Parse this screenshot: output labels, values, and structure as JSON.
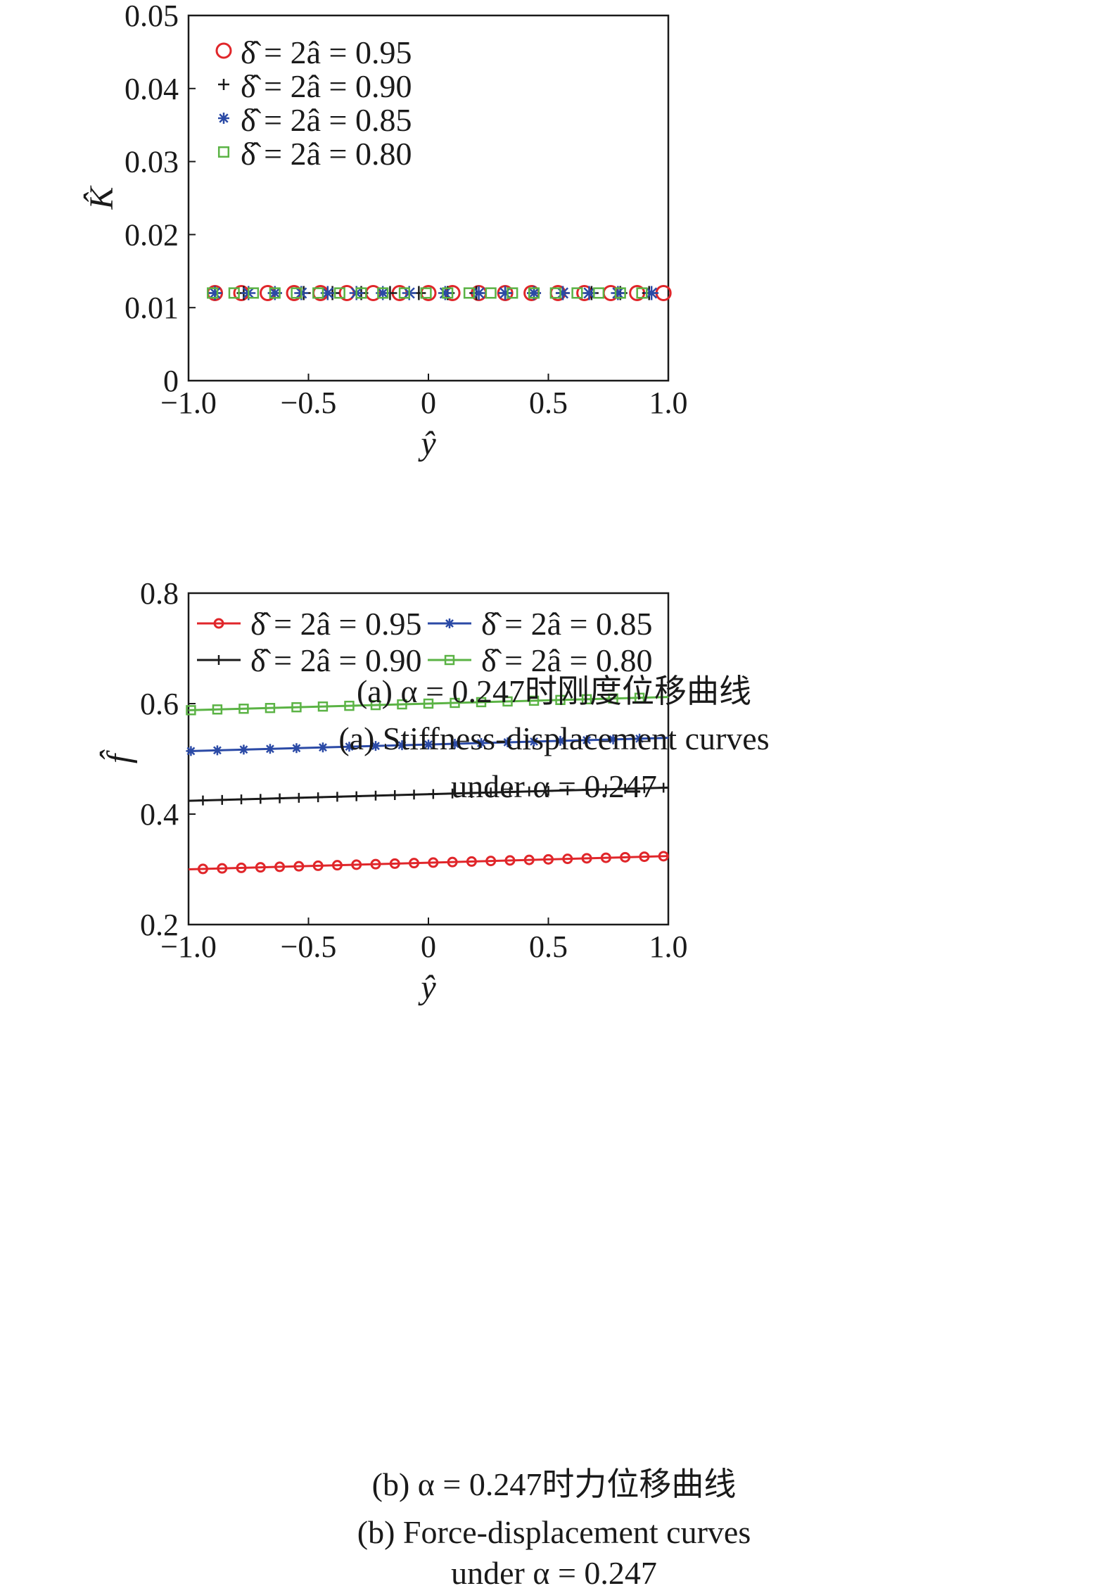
{
  "chart_data": [
    {
      "type": "scatter",
      "xlabel": "ŷ",
      "ylabel": "K̂",
      "xlim": [
        -1.0,
        1.0
      ],
      "ylim": [
        0,
        0.05
      ],
      "xticks": [
        -1.0,
        -0.5,
        0,
        0.5,
        1.0
      ],
      "xtick_labels": [
        "−1.0",
        "−0.5",
        "0",
        "0.5",
        "1.0"
      ],
      "yticks": [
        0,
        0.01,
        0.02,
        0.03,
        0.04,
        0.05
      ],
      "ytick_labels": [
        "0",
        "0.01",
        "0.02",
        "0.03",
        "0.04",
        "0.05"
      ],
      "legend_position": "top-left",
      "caption_cn": "(a) α = 0.247时刚度位移曲线",
      "caption_en": [
        "(a) Stiffness-displacement curves",
        "under  α = 0.247"
      ],
      "series": [
        {
          "name": "δ̂ = 2â = 0.95",
          "marker": "circle",
          "color": "#e0262a",
          "line": false,
          "x": [
            -0.89,
            -0.78,
            -0.67,
            -0.56,
            -0.45,
            -0.34,
            -0.23,
            -0.12,
            0.0,
            0.1,
            0.21,
            0.32,
            0.43,
            0.54,
            0.65,
            0.76,
            0.87,
            0.98
          ],
          "y": [
            0.012,
            0.012,
            0.012,
            0.012,
            0.012,
            0.012,
            0.012,
            0.012,
            0.012,
            0.012,
            0.012,
            0.012,
            0.012,
            0.012,
            0.012,
            0.012,
            0.012,
            0.012
          ]
        },
        {
          "name": "δ̂ = 2â = 0.90",
          "marker": "plus",
          "color": "#1a1a1a",
          "line": false,
          "x": [
            -0.89,
            -0.77,
            -0.64,
            -0.52,
            -0.4,
            -0.28,
            -0.16,
            -0.04,
            0.08,
            0.2,
            0.32,
            0.44,
            0.56,
            0.68,
            0.8,
            0.92
          ],
          "y": [
            0.012,
            0.012,
            0.012,
            0.012,
            0.012,
            0.012,
            0.012,
            0.012,
            0.012,
            0.012,
            0.012,
            0.012,
            0.012,
            0.012,
            0.012,
            0.012
          ]
        },
        {
          "name": "δ̂ = 2â = 0.85",
          "marker": "asterisk",
          "color": "#2b4aa6",
          "line": false,
          "x": [
            -0.89,
            -0.75,
            -0.64,
            -0.53,
            -0.42,
            -0.3,
            -0.19,
            -0.08,
            0.07,
            0.21,
            0.32,
            0.44,
            0.56,
            0.67,
            0.79,
            0.93
          ],
          "y": [
            0.012,
            0.012,
            0.012,
            0.012,
            0.012,
            0.012,
            0.012,
            0.012,
            0.012,
            0.012,
            0.012,
            0.012,
            0.012,
            0.012,
            0.012,
            0.012
          ]
        },
        {
          "name": "δ̂ = 2â = 0.80",
          "marker": "square",
          "color": "#5bb345",
          "line": false,
          "x": [
            -0.9,
            -0.81,
            -0.73,
            -0.64,
            -0.55,
            -0.46,
            -0.37,
            -0.28,
            -0.19,
            -0.1,
            -0.01,
            0.08,
            0.17,
            0.26,
            0.35,
            0.44,
            0.53,
            0.62,
            0.71,
            0.8,
            0.89
          ],
          "y": [
            0.012,
            0.012,
            0.012,
            0.012,
            0.012,
            0.012,
            0.012,
            0.012,
            0.012,
            0.012,
            0.012,
            0.012,
            0.012,
            0.012,
            0.012,
            0.012,
            0.012,
            0.012,
            0.012,
            0.012,
            0.012
          ]
        }
      ]
    },
    {
      "type": "line",
      "xlabel": "ŷ",
      "ylabel": "f̂",
      "xlim": [
        -1.0,
        1.0
      ],
      "ylim": [
        0.2,
        0.8
      ],
      "xticks": [
        -1.0,
        -0.5,
        0,
        0.5,
        1.0
      ],
      "xtick_labels": [
        "−1.0",
        "−0.5",
        "0",
        "0.5",
        "1.0"
      ],
      "yticks": [
        0.2,
        0.4,
        0.6,
        0.8
      ],
      "ytick_labels": [
        "0.2",
        "0.4",
        "0.6",
        "0.8"
      ],
      "legend_position": "top",
      "caption_cn": "(b) α = 0.247时力位移曲线",
      "caption_en": [
        "(b) Force-displacement curves",
        "under α = 0.247"
      ],
      "series": [
        {
          "name": "δ̂ = 2â = 0.95",
          "marker": "circle",
          "color": "#e0262a",
          "line": true,
          "y0": 0.3,
          "y1": 0.324,
          "marker_x_start": -0.94,
          "marker_step": 0.08
        },
        {
          "name": "δ̂ = 2â = 0.90",
          "marker": "plus",
          "color": "#1a1a1a",
          "line": true,
          "y0": 0.424,
          "y1": 0.448,
          "marker_x_start": -0.94,
          "marker_step": 0.08
        },
        {
          "name": "δ̂ = 2â = 0.85",
          "marker": "asterisk",
          "color": "#2b4aa6",
          "line": true,
          "y0": 0.514,
          "y1": 0.538,
          "marker_x_start": -0.99,
          "marker_step": 0.11
        },
        {
          "name": "δ̂ = 2â = 0.80",
          "marker": "square",
          "color": "#5bb345",
          "line": true,
          "y0": 0.588,
          "y1": 0.612,
          "marker_x_start": -0.99,
          "marker_step": 0.11
        }
      ]
    }
  ]
}
